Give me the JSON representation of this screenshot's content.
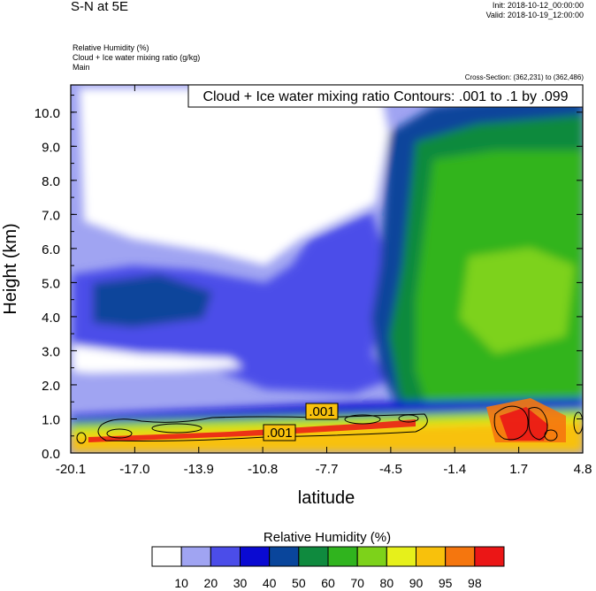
{
  "header": {
    "title": "S-N at 5E",
    "init": "Init: 2018-10-12_00:00:00",
    "valid": "Valid: 2018-10-19_12:00:00",
    "field1": "Relative Humidity   (%)",
    "field2": "Cloud + Ice water mixing ratio   (g/kg)",
    "field3": "Main",
    "cross_section": "Cross-Section: (362,231) to (362,486)"
  },
  "colors": [
    "#ffffff",
    "#a0a4f2",
    "#4b4de9",
    "#0a0ad2",
    "#09459b",
    "#0f8a3e",
    "#30b41e",
    "#7dd21a",
    "#e6f01b",
    "#f8c10c",
    "#f5760e",
    "#eb1616"
  ],
  "chart_data": {
    "type": "contour",
    "title": "Cloud + Ice water mixing ratio Contours: .001 to .1 by .099",
    "xlabel": "latitude",
    "ylabel": "Height (km)",
    "x_ticks": [
      "-20.1",
      "-17.0",
      "-13.9",
      "-10.8",
      "-7.7",
      "-4.5",
      "-1.4",
      "1.7",
      "4.8"
    ],
    "y_ticks": [
      "0.0",
      "1.0",
      "2.0",
      "3.0",
      "4.0",
      "5.0",
      "6.0",
      "7.0",
      "8.0",
      "9.0",
      "10.0"
    ],
    "xlim": [
      -20.1,
      4.8
    ],
    "ylim": [
      0,
      10.8
    ],
    "contour_labels": [
      ".001",
      ".001"
    ],
    "colorbar": {
      "title": "Relative Humidity  (%)",
      "levels": [
        "10",
        "20",
        "30",
        "40",
        "50",
        "60",
        "70",
        "80",
        "90",
        "95",
        "98"
      ]
    }
  }
}
